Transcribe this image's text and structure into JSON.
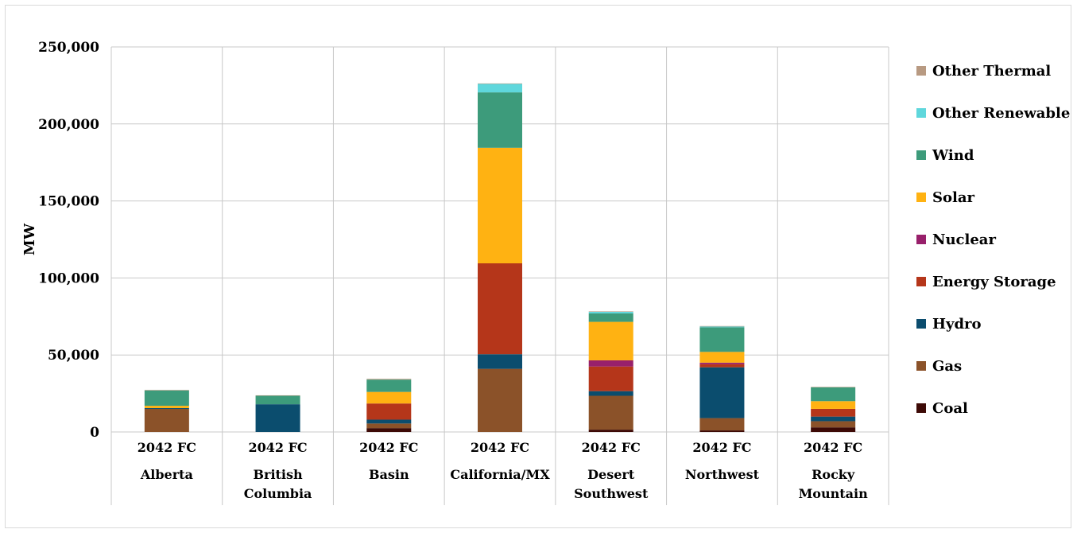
{
  "chart_data": {
    "type": "bar",
    "stacked": true,
    "ylabel": "MW",
    "xlabel": "",
    "title": "",
    "ylim": [
      0,
      250000
    ],
    "yticks": [
      0,
      50000,
      100000,
      150000,
      200000,
      250000
    ],
    "ytick_labels": [
      "0",
      "50,000",
      "100,000",
      "150,000",
      "200,000",
      "250,000"
    ],
    "grid": true,
    "legend_position": "right",
    "categories": [
      {
        "group": "Alberta",
        "bar": "2042 FC",
        "group_lines": [
          "Alberta"
        ]
      },
      {
        "group": "British Columbia",
        "bar": "2042 FC",
        "group_lines": [
          "British",
          "Columbia"
        ]
      },
      {
        "group": "Basin",
        "bar": "2042 FC",
        "group_lines": [
          "Basin"
        ]
      },
      {
        "group": "California/MX",
        "bar": "2042 FC",
        "group_lines": [
          "California/MX"
        ]
      },
      {
        "group": "Desert Southwest",
        "bar": "2042 FC",
        "group_lines": [
          "Desert",
          "Southwest"
        ]
      },
      {
        "group": "Northwest",
        "bar": "2042 FC",
        "group_lines": [
          "Northwest"
        ]
      },
      {
        "group": "Rocky Mountain",
        "bar": "2042 FC",
        "group_lines": [
          "Rocky",
          "Mountain"
        ]
      }
    ],
    "series": [
      {
        "name": "Coal",
        "color": "#3d0a06",
        "values": [
          0,
          0,
          2500,
          0,
          1500,
          1000,
          3000
        ]
      },
      {
        "name": "Gas",
        "color": "#8b5229",
        "values": [
          15000,
          0,
          3000,
          41000,
          22000,
          8000,
          4000
        ]
      },
      {
        "name": "Hydro",
        "color": "#0b4d6e",
        "values": [
          500,
          18000,
          2500,
          9500,
          3000,
          33000,
          3000
        ]
      },
      {
        "name": "Energy Storage",
        "color": "#b5361a",
        "values": [
          0,
          0,
          10500,
          59000,
          16000,
          2000,
          5000
        ]
      },
      {
        "name": "Nuclear",
        "color": "#98206b",
        "values": [
          0,
          0,
          0,
          0,
          4000,
          1000,
          0
        ]
      },
      {
        "name": "Solar",
        "color": "#ffb212",
        "values": [
          1500,
          0,
          7500,
          75000,
          25000,
          7000,
          5000
        ]
      },
      {
        "name": "Wind",
        "color": "#3d9b7b",
        "values": [
          10000,
          5500,
          8000,
          36000,
          5500,
          16000,
          9000
        ]
      },
      {
        "name": "Other Renewable",
        "color": "#5fd7dc",
        "values": [
          0,
          0,
          0,
          5500,
          1000,
          500,
          0
        ]
      },
      {
        "name": "Other Thermal",
        "color": "#b89a82",
        "values": [
          300,
          300,
          500,
          300,
          300,
          300,
          300
        ]
      }
    ]
  }
}
